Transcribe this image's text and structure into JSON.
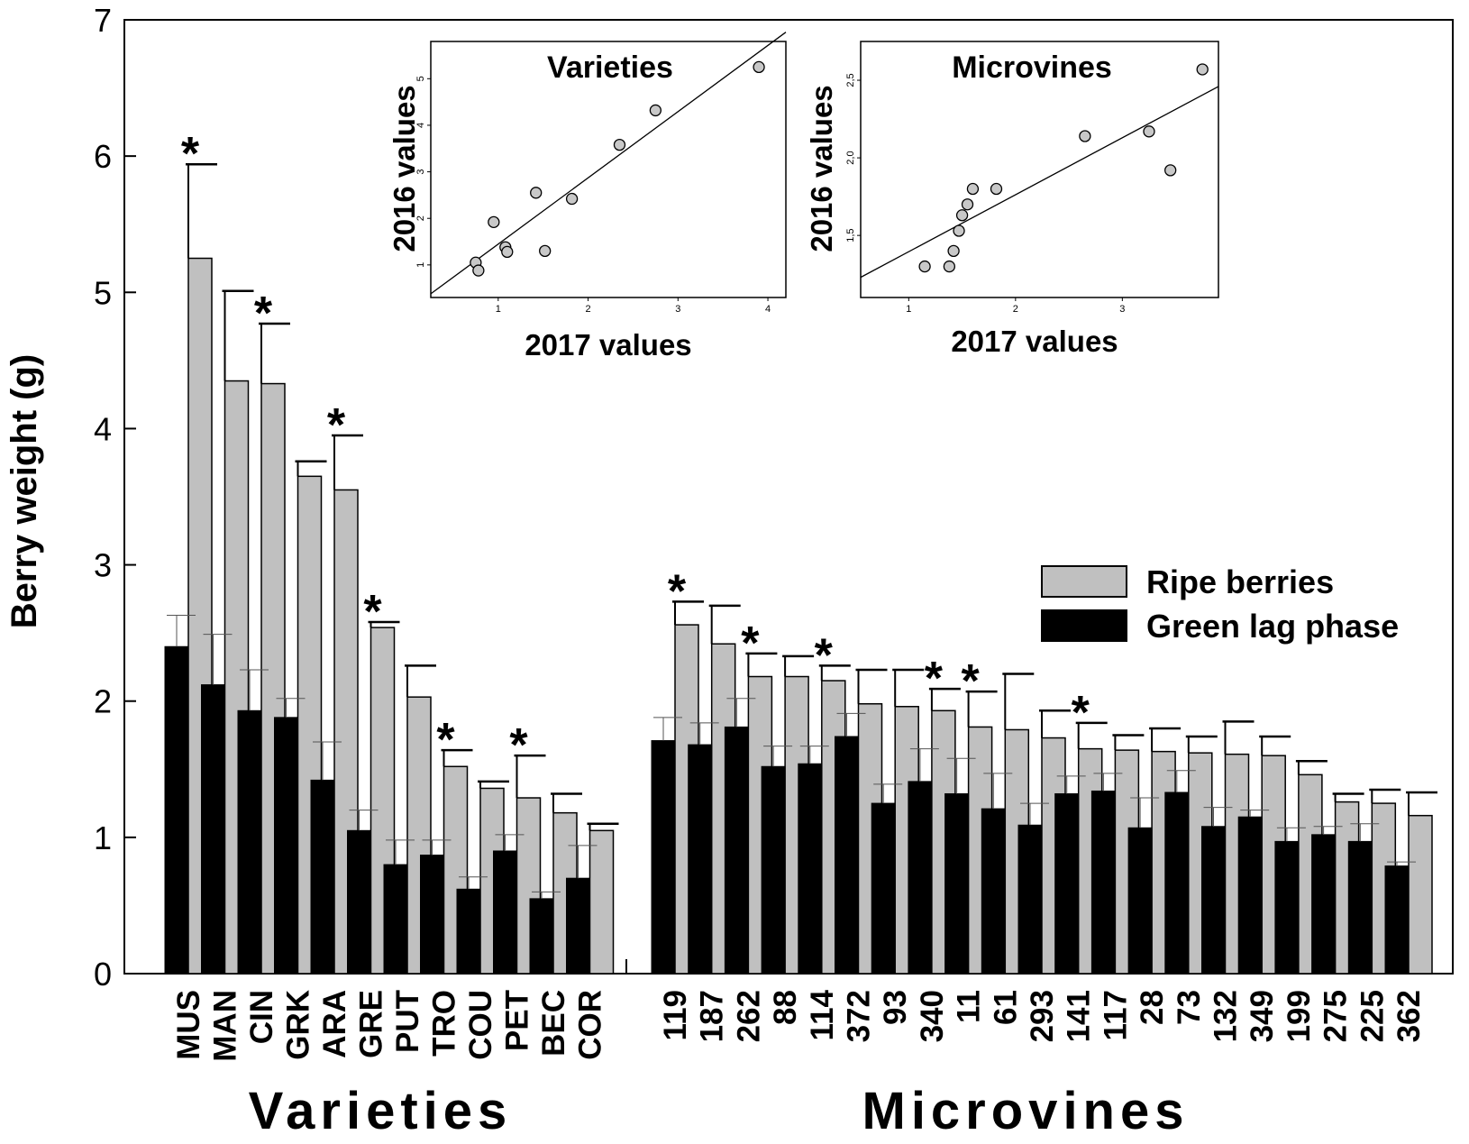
{
  "chart_data": {
    "type": "bar",
    "ylabel": "Berry weight (g)",
    "ylim": [
      0,
      7
    ],
    "yticks": [
      "0",
      "1",
      "2",
      "3",
      "4",
      "5",
      "6",
      "7"
    ],
    "groups": [
      {
        "name": "Varieties",
        "categories": [
          "MUS",
          "MAN",
          "CIN",
          "GRK",
          "ARA",
          "GRE",
          "PUT",
          "TRO",
          "COU",
          "PET",
          "BEC",
          "COR"
        ],
        "green": [
          2.4,
          2.12,
          1.93,
          1.88,
          1.42,
          1.05,
          0.8,
          0.87,
          0.62,
          0.9,
          0.55,
          0.7
        ],
        "green_sd": [
          0.23,
          0.37,
          0.3,
          0.14,
          0.28,
          0.15,
          0.18,
          0.11,
          0.09,
          0.12,
          0.05,
          0.24
        ],
        "ripe": [
          5.25,
          4.35,
          4.33,
          3.65,
          3.55,
          2.54,
          2.03,
          1.52,
          1.36,
          1.29,
          1.18,
          1.05
        ],
        "ripe_sd": [
          0.69,
          0.66,
          0.44,
          0.11,
          0.4,
          0.04,
          0.23,
          0.12,
          0.05,
          0.31,
          0.14,
          0.05
        ],
        "significant": [
          true,
          false,
          true,
          false,
          true,
          true,
          false,
          true,
          false,
          true,
          false,
          false
        ]
      },
      {
        "name": "Microvines",
        "categories": [
          "119",
          "187",
          "262",
          "88",
          "114",
          "372",
          "93",
          "340",
          "11",
          "61",
          "293",
          "141",
          "117",
          "28",
          "73",
          "132",
          "349",
          "199",
          "275",
          "225",
          "362"
        ],
        "green": [
          1.71,
          1.68,
          1.81,
          1.52,
          1.54,
          1.74,
          1.25,
          1.41,
          1.32,
          1.21,
          1.09,
          1.32,
          1.34,
          1.07,
          1.33,
          1.08,
          1.15,
          0.97,
          1.02,
          0.97,
          0.79
        ],
        "green_sd": [
          0.17,
          0.16,
          0.21,
          0.15,
          0.13,
          0.17,
          0.14,
          0.24,
          0.26,
          0.26,
          0.16,
          0.13,
          0.13,
          0.22,
          0.16,
          0.14,
          0.05,
          0.1,
          0.06,
          0.13,
          0.03
        ],
        "ripe": [
          2.56,
          2.42,
          2.18,
          2.18,
          2.15,
          1.98,
          1.96,
          1.93,
          1.81,
          1.79,
          1.73,
          1.65,
          1.64,
          1.63,
          1.62,
          1.61,
          1.6,
          1.46,
          1.26,
          1.25,
          1.16
        ],
        "ripe_sd": [
          0.17,
          0.28,
          0.17,
          0.15,
          0.11,
          0.25,
          0.27,
          0.16,
          0.26,
          0.41,
          0.2,
          0.19,
          0.11,
          0.17,
          0.12,
          0.24,
          0.14,
          0.1,
          0.06,
          0.1,
          0.17
        ],
        "significant": [
          true,
          false,
          true,
          false,
          true,
          false,
          false,
          true,
          true,
          false,
          false,
          true,
          false,
          false,
          false,
          false,
          false,
          false,
          false,
          false,
          false
        ]
      }
    ],
    "legend": {
      "position": "right",
      "entries": [
        {
          "label": "Ripe berries",
          "color": "#c0c0c0"
        },
        {
          "label": "Green lag phase",
          "color": "#000000"
        }
      ]
    },
    "significance_marker": "*",
    "insets": [
      {
        "type": "scatter",
        "title": "Varieties",
        "xlabel": "2017 values",
        "ylabel": "2016 values",
        "xlim": [
          0.25,
          4.2
        ],
        "ylim": [
          0.3,
          5.8
        ],
        "xticks": [
          1,
          2,
          3,
          4
        ],
        "xtick_labels": [
          "1",
          "2",
          "3",
          "4"
        ],
        "yticks": [
          1,
          2,
          3,
          4,
          5
        ],
        "ytick_labels": [
          "1",
          "2",
          "3",
          "4",
          "5"
        ],
        "points": [
          [
            0.75,
            1.05
          ],
          [
            0.78,
            0.88
          ],
          [
            1.08,
            1.38
          ],
          [
            1.1,
            1.28
          ],
          [
            0.95,
            1.92
          ],
          [
            1.42,
            2.55
          ],
          [
            1.52,
            1.3
          ],
          [
            1.82,
            2.42
          ],
          [
            2.35,
            3.58
          ],
          [
            2.75,
            4.32
          ],
          [
            3.9,
            5.25
          ]
        ],
        "fit_line": [
          [
            0.25,
            0.38
          ],
          [
            4.2,
            6.0
          ]
        ]
      },
      {
        "type": "scatter",
        "title": "Microvines",
        "xlabel": "2017 values",
        "ylabel": "2016 values",
        "xlim": [
          0.55,
          3.9
        ],
        "ylim": [
          1.1,
          2.75
        ],
        "xticks": [
          1,
          2,
          3
        ],
        "xtick_labels": [
          "1",
          "2",
          "3"
        ],
        "yticks": [
          1.5,
          2.0,
          2.5
        ],
        "ytick_labels": [
          "1,5",
          "2,0",
          "2,5"
        ],
        "points": [
          [
            1.15,
            1.3
          ],
          [
            1.38,
            1.3
          ],
          [
            1.42,
            1.4
          ],
          [
            1.47,
            1.53
          ],
          [
            1.5,
            1.63
          ],
          [
            1.55,
            1.7
          ],
          [
            1.6,
            1.8
          ],
          [
            1.82,
            1.8
          ],
          [
            2.65,
            2.14
          ],
          [
            3.25,
            2.17
          ],
          [
            3.45,
            1.92
          ],
          [
            3.75,
            2.57
          ]
        ],
        "fit_line": [
          [
            0.55,
            1.23
          ],
          [
            3.9,
            2.46
          ]
        ]
      }
    ]
  }
}
